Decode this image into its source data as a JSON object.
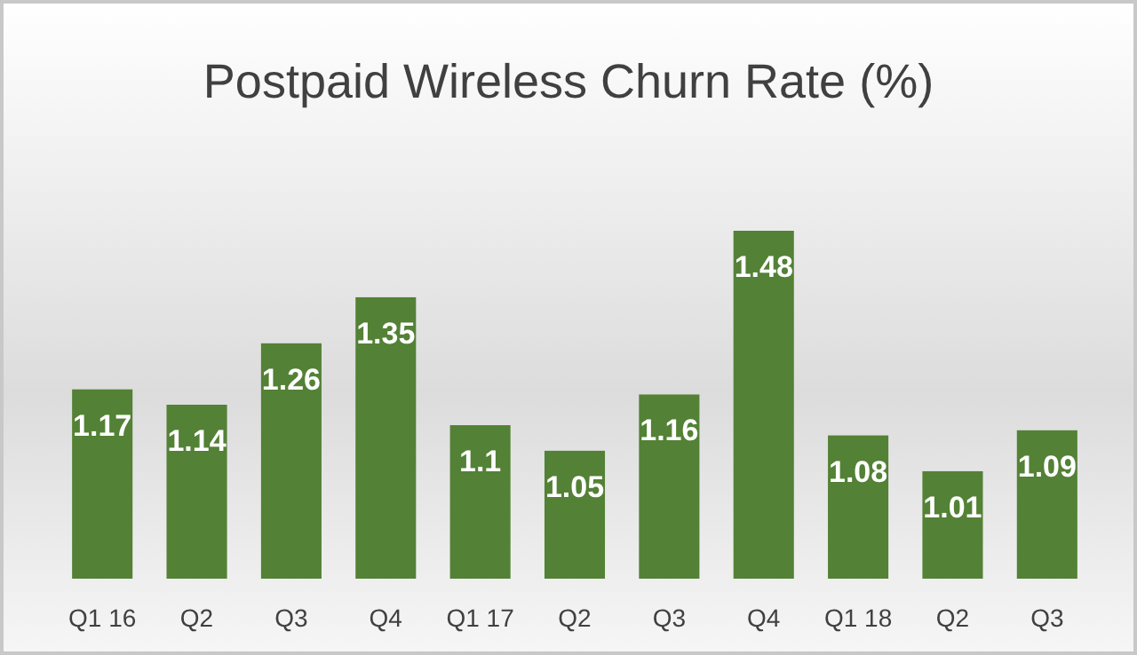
{
  "chart_data": {
    "type": "bar",
    "title": "Postpaid Wireless Churn Rate (%)",
    "categories": [
      "Q1 16",
      "Q2",
      "Q3",
      "Q4",
      "Q1 17",
      "Q2",
      "Q3",
      "Q4",
      "Q1 18",
      "Q2",
      "Q3"
    ],
    "values": [
      1.17,
      1.14,
      1.26,
      1.35,
      1.1,
      1.05,
      1.16,
      1.48,
      1.08,
      1.01,
      1.09
    ],
    "color": "#538135",
    "ylim": [
      0.8,
      1.48
    ],
    "data_labels": true
  }
}
